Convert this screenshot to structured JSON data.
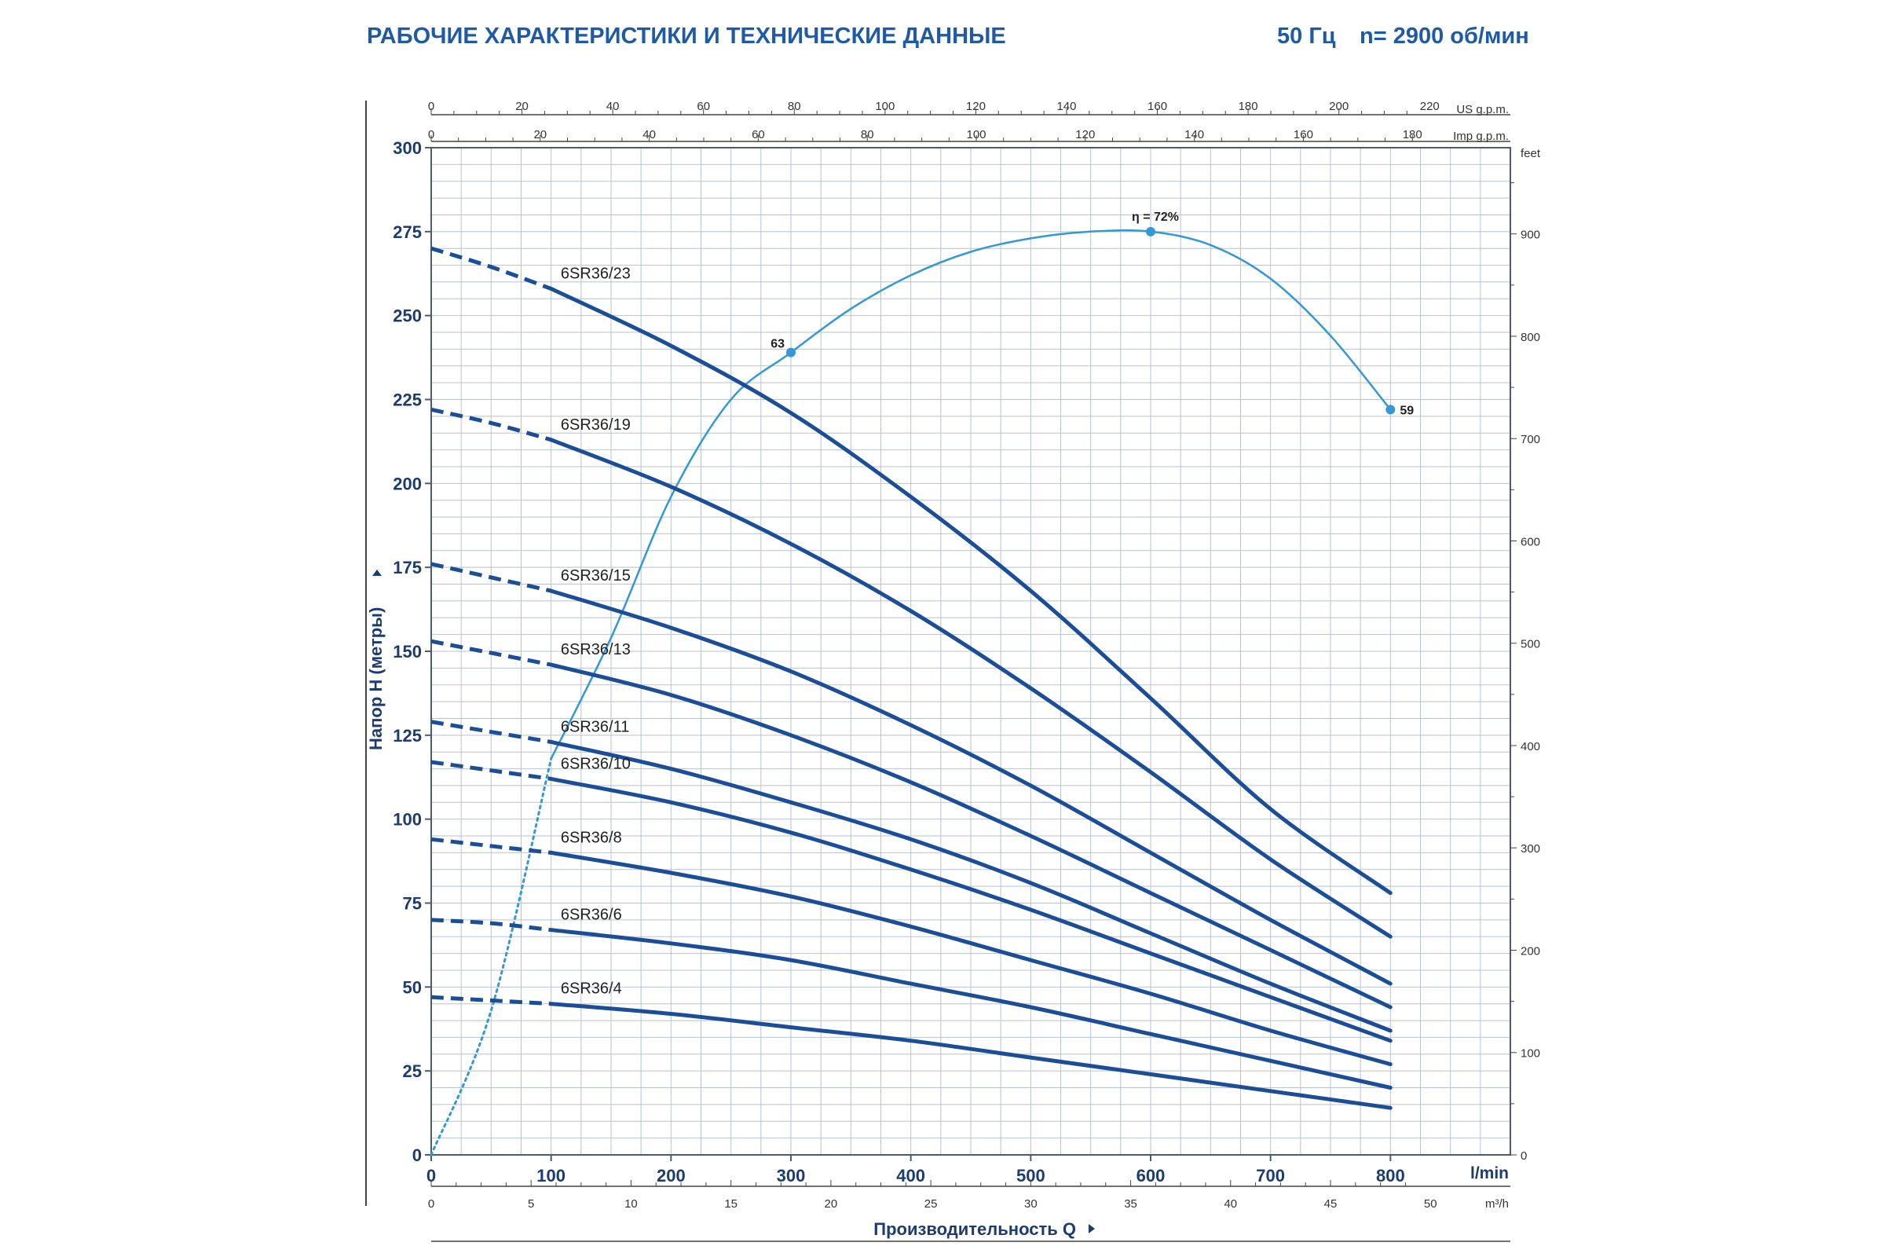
{
  "header": {
    "title": "РАБОЧИЕ ХАРАКТЕРИСТИКИ И ТЕХНИЧЕСКИЕ ДАННЫЕ",
    "frequency": "50 Гц",
    "speed": "n= 2900 об/мин"
  },
  "colors": {
    "curve": "#1b4e96",
    "efficiency": "#3498d4",
    "grid": "#b9c2cf",
    "header": "#1e5aa8",
    "text": "#1d3c6e"
  },
  "chart_data": {
    "type": "line",
    "xlabel": "Производительность Q",
    "ylabel": "Напор H (метры)",
    "x_unit": "l/min",
    "xlim": [
      0,
      900
    ],
    "ylim": [
      0,
      300
    ],
    "x_ticks": [
      0,
      100,
      200,
      300,
      400,
      500,
      600,
      700,
      800
    ],
    "y_ticks": [
      0,
      25,
      50,
      75,
      100,
      125,
      150,
      175,
      200,
      225,
      250,
      275,
      300
    ],
    "secondary_axes": {
      "us_gpm": {
        "label": "US g.p.m.",
        "factor": 3.785,
        "ticks": [
          0,
          20,
          40,
          60,
          80,
          100,
          120,
          140,
          160,
          180,
          200,
          220
        ]
      },
      "imp_gpm": {
        "label": "Imp g.p.m.",
        "factor": 4.546,
        "ticks": [
          0,
          20,
          40,
          60,
          80,
          100,
          120,
          140,
          160,
          180
        ]
      },
      "m3h": {
        "label": "m³/h",
        "factor": 16.667,
        "ticks": [
          0,
          5,
          10,
          15,
          20,
          25,
          30,
          35,
          40,
          45,
          50
        ]
      },
      "feet": {
        "label": "feet",
        "factor": 0.3048,
        "ticks": [
          0,
          100,
          200,
          300,
          400,
          500,
          600,
          700,
          800,
          900
        ]
      }
    },
    "series": [
      {
        "name": "6SR36/23",
        "x": [
          0,
          50,
          100,
          200,
          300,
          400,
          500,
          600,
          700,
          800
        ],
        "y": [
          270,
          264.5,
          258,
          241,
          221,
          196,
          168,
          136,
          103,
          78
        ]
      },
      {
        "name": "6SR36/19",
        "x": [
          0,
          50,
          100,
          200,
          300,
          400,
          500,
          600,
          700,
          800
        ],
        "y": [
          222,
          218,
          213,
          199,
          182,
          162,
          139,
          114,
          88,
          65
        ]
      },
      {
        "name": "6SR36/15",
        "x": [
          0,
          50,
          100,
          200,
          300,
          400,
          500,
          600,
          700,
          800
        ],
        "y": [
          176,
          172,
          168,
          157,
          144,
          128,
          110,
          90,
          70,
          51
        ]
      },
      {
        "name": "6SR36/13",
        "x": [
          0,
          50,
          100,
          200,
          300,
          400,
          500,
          600,
          700,
          800
        ],
        "y": [
          153,
          149.5,
          146,
          137,
          125,
          111,
          95,
          78,
          61,
          44
        ]
      },
      {
        "name": "6SR36/11",
        "x": [
          0,
          50,
          100,
          200,
          300,
          400,
          500,
          600,
          700,
          800
        ],
        "y": [
          129,
          126,
          123,
          115,
          105,
          94,
          81,
          66,
          51,
          37
        ]
      },
      {
        "name": "6SR36/10",
        "x": [
          0,
          50,
          100,
          200,
          300,
          400,
          500,
          600,
          700,
          800
        ],
        "y": [
          117,
          114.5,
          112,
          105,
          96,
          85,
          73,
          60,
          47,
          34
        ]
      },
      {
        "name": "6SR36/8",
        "x": [
          0,
          50,
          100,
          200,
          300,
          400,
          500,
          600,
          700,
          800
        ],
        "y": [
          94,
          92,
          90,
          84,
          77,
          68,
          58,
          48,
          37,
          27
        ]
      },
      {
        "name": "6SR36/6",
        "x": [
          0,
          50,
          100,
          200,
          300,
          400,
          500,
          600,
          700,
          800
        ],
        "y": [
          70,
          69,
          67,
          63,
          58,
          51,
          44,
          36,
          28,
          20
        ]
      },
      {
        "name": "6SR36/4",
        "x": [
          0,
          50,
          100,
          200,
          300,
          400,
          500,
          600,
          700,
          800
        ],
        "y": [
          47,
          46,
          45,
          42,
          38,
          34,
          29,
          24,
          19,
          14
        ]
      }
    ],
    "efficiency_curve": {
      "x": [
        0,
        50,
        100,
        150,
        200,
        250,
        300,
        350,
        400,
        450,
        500,
        550,
        600,
        650,
        700,
        750,
        800
      ],
      "y": [
        0,
        43,
        118,
        154,
        196,
        225,
        239,
        252,
        262,
        269,
        273,
        275,
        275,
        271,
        261,
        244,
        222
      ],
      "dotted_until_x": 100,
      "markers": [
        {
          "x": 300,
          "y": 239,
          "label": "63"
        },
        {
          "x": 600,
          "y": 275,
          "label": "η = 72%"
        },
        {
          "x": 800,
          "y": 222,
          "label": "59"
        }
      ]
    }
  }
}
